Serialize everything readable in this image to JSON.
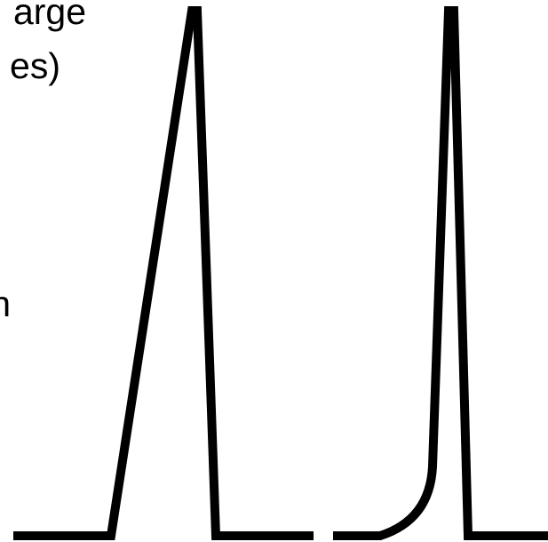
{
  "labels": {
    "line_1": "arge",
    "line_2": "es)",
    "line_3": "n"
  }
}
